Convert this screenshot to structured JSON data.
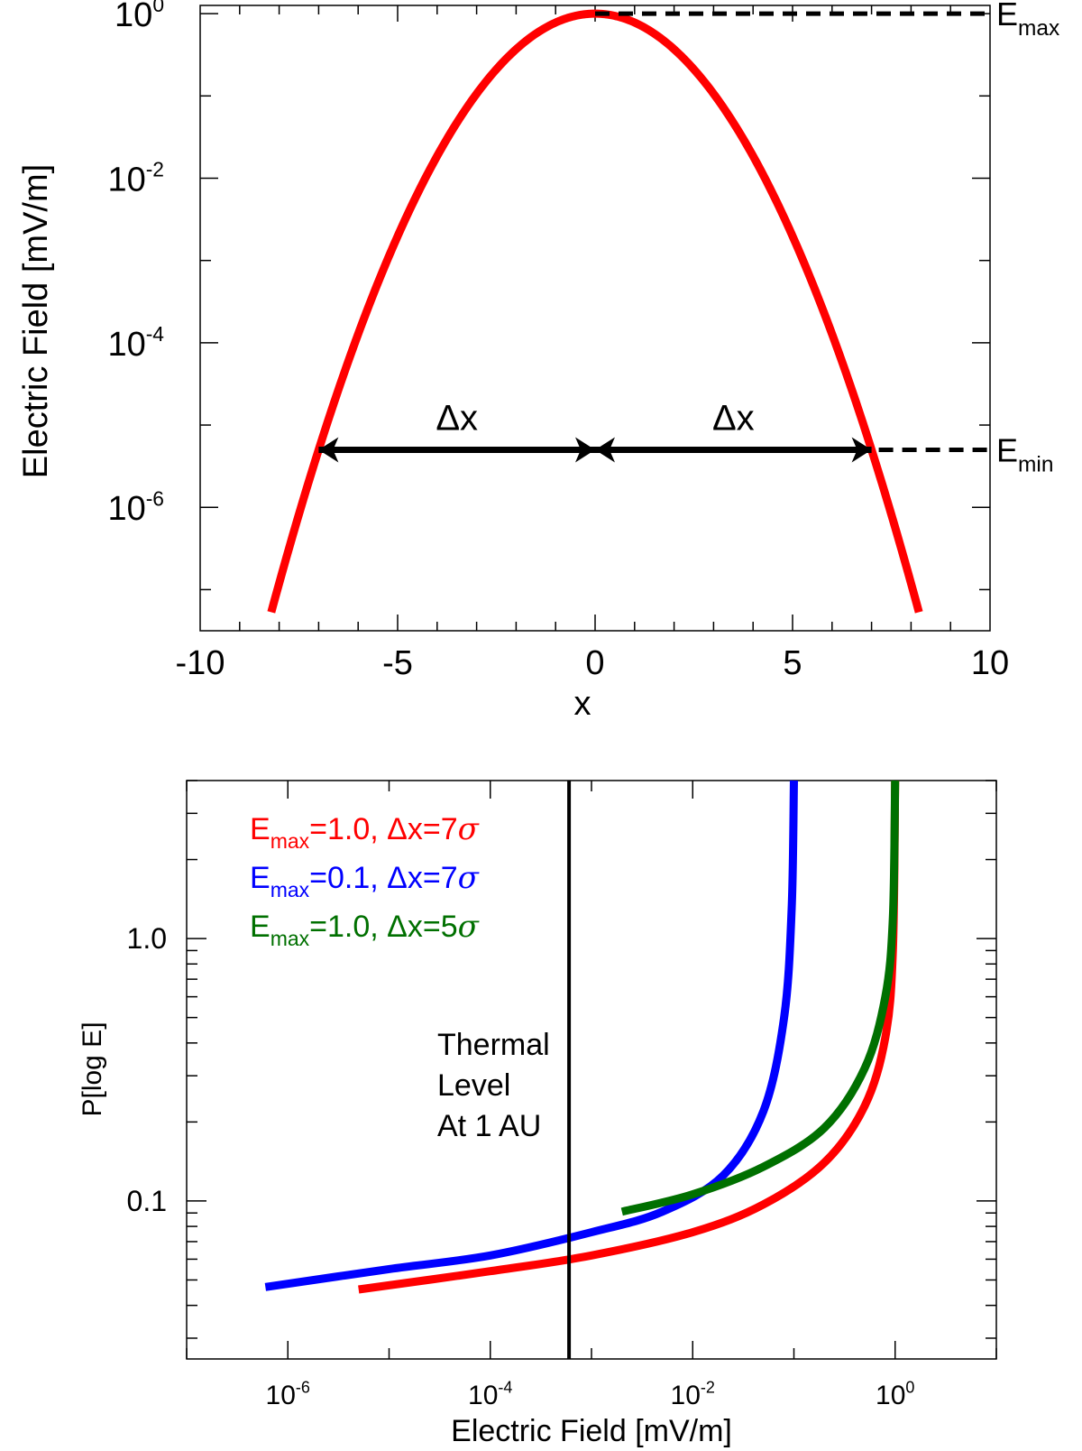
{
  "chart_data": [
    {
      "type": "line",
      "xlabel": "x",
      "ylabel": "Electric Field [mV/m]",
      "xlim": [
        -10,
        10
      ],
      "ylim_log10": [
        -7.5,
        0.1
      ],
      "y_scale": "log",
      "x_ticks": [
        -10,
        -5,
        0,
        5,
        10
      ],
      "x_tick_labels": [
        "-10",
        "-5",
        "0",
        "5",
        "10"
      ],
      "y_tick_exponents": [
        0,
        -2,
        -4,
        -6
      ],
      "y_tick_base": "10",
      "y_tick_labels": [
        "0",
        "-2",
        "-4",
        "-6"
      ],
      "series": [
        {
          "color": "#ff0000",
          "function": "gaussian",
          "peak": 1.0,
          "peak_x": 0,
          "e_min_at_x": 7,
          "e_min": 5e-06,
          "x_range": [
            -8.2,
            8.2
          ]
        }
      ],
      "annotations": {
        "delta_x_label": "Δx",
        "emax_label": "E",
        "emax_sub": "max",
        "emin_label": "E",
        "emin_sub": "min",
        "arrow_from_x": -7,
        "arrow_to_x": 7,
        "arrow_center_x": 0,
        "arrow_y": 5e-06
      }
    },
    {
      "type": "line",
      "xlabel": "Electric Field [mV/m]",
      "ylabel": "P[log E]",
      "x_scale": "log",
      "y_scale": "log",
      "xlim_log10": [
        -7,
        1
      ],
      "ylim": [
        0.025,
        4.0
      ],
      "x_tick_exponents": [
        -6,
        -4,
        -2,
        0
      ],
      "x_tick_base": "10",
      "x_tick_labels": [
        "-6",
        "-4",
        "-2",
        "0"
      ],
      "y_ticks": [
        1.0,
        0.1
      ],
      "y_tick_labels": [
        "1.0",
        "0.1"
      ],
      "vertical_line_x": 0.0006,
      "annotation_text": [
        "Thermal",
        "Level",
        "At 1 AU"
      ],
      "legend": {
        "position": "top-left",
        "entries": [
          {
            "e": "E",
            "sub": "max",
            "text": "=1.0, Δx=7",
            "sigma": "σ",
            "color": "#ff0000"
          },
          {
            "e": "E",
            "sub": "max",
            "text": "=0.1, Δx=7",
            "sigma": "σ",
            "color": "#0000ff"
          },
          {
            "e": "E",
            "sub": "max",
            "text": "=1.0, Δx=5",
            "sigma": "σ",
            "color": "#007000"
          }
        ]
      },
      "series": [
        {
          "color": "#ff0000",
          "points": [
            [
              5e-06,
              0.046
            ],
            [
              0.0001,
              0.054
            ],
            [
              0.001,
              0.062
            ],
            [
              0.01,
              0.076
            ],
            [
              0.05,
              0.097
            ],
            [
              0.2,
              0.14
            ],
            [
              0.5,
              0.23
            ],
            [
              0.8,
              0.42
            ],
            [
              0.95,
              0.9
            ],
            [
              1.0,
              4.0
            ]
          ]
        },
        {
          "color": "#0000ff",
          "points": [
            [
              6e-07,
              0.047
            ],
            [
              1e-05,
              0.055
            ],
            [
              0.0001,
              0.062
            ],
            [
              0.001,
              0.076
            ],
            [
              0.005,
              0.091
            ],
            [
              0.02,
              0.125
            ],
            [
              0.05,
              0.22
            ],
            [
              0.08,
              0.5
            ],
            [
              0.095,
              1.3
            ],
            [
              0.1,
              4.0
            ]
          ]
        },
        {
          "color": "#007000",
          "points": [
            [
              0.002,
              0.091
            ],
            [
              0.01,
              0.106
            ],
            [
              0.05,
              0.135
            ],
            [
              0.2,
              0.19
            ],
            [
              0.5,
              0.32
            ],
            [
              0.8,
              0.6
            ],
            [
              0.95,
              1.2
            ],
            [
              1.0,
              4.0
            ]
          ]
        }
      ]
    }
  ]
}
